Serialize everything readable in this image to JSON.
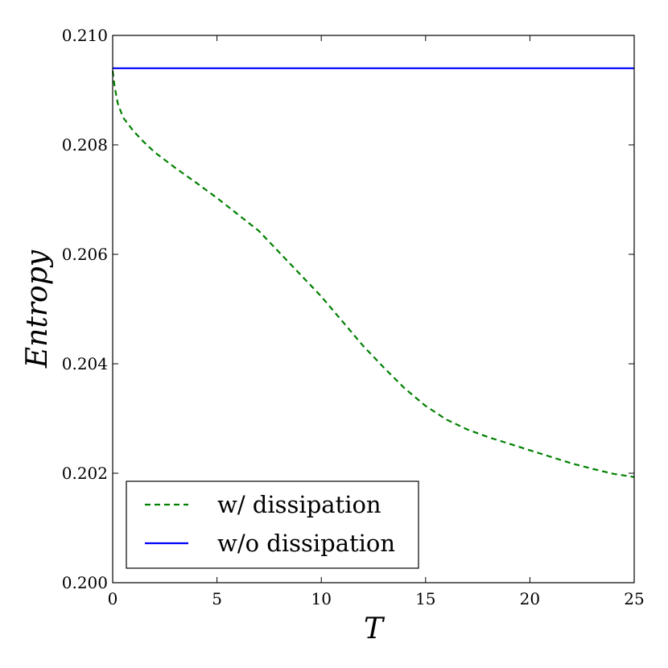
{
  "chart_data": {
    "type": "line",
    "title": "",
    "xlabel": "T",
    "ylabel": "Entropy",
    "xlim": [
      0,
      25
    ],
    "ylim": [
      0.2,
      0.21
    ],
    "xticks": [
      0,
      5,
      10,
      15,
      20,
      25
    ],
    "xtick_labels": [
      "0",
      "5",
      "10",
      "15",
      "20",
      "25"
    ],
    "yticks": [
      0.2,
      0.202,
      0.204,
      0.206,
      0.208,
      0.21
    ],
    "ytick_labels": [
      "0.200",
      "0.202",
      "0.204",
      "0.206",
      "0.208",
      "0.210"
    ],
    "grid": false,
    "legend_position": "lower-left",
    "series": [
      {
        "name": "w/ dissipation",
        "color": "#008000",
        "style": "dashed",
        "x": [
          0,
          0.1,
          0.25,
          0.5,
          1,
          1.5,
          2,
          3,
          4,
          5,
          6,
          7,
          8,
          9,
          10,
          11,
          12,
          13,
          14,
          15,
          16,
          17,
          18,
          19,
          20,
          21,
          22,
          23,
          24,
          25
        ],
        "y": [
          0.20935,
          0.20905,
          0.20875,
          0.2085,
          0.20825,
          0.20805,
          0.20787,
          0.20758,
          0.20731,
          0.20703,
          0.20673,
          0.20643,
          0.20603,
          0.20563,
          0.20523,
          0.20478,
          0.20433,
          0.20393,
          0.20355,
          0.20323,
          0.20298,
          0.2028,
          0.20266,
          0.20254,
          0.20242,
          0.2023,
          0.20218,
          0.20208,
          0.20199,
          0.20193
        ]
      },
      {
        "name": "w/o dissipation",
        "color": "#0000ff",
        "style": "solid",
        "x": [
          0,
          25
        ],
        "y": [
          0.2094,
          0.2094
        ]
      }
    ]
  }
}
